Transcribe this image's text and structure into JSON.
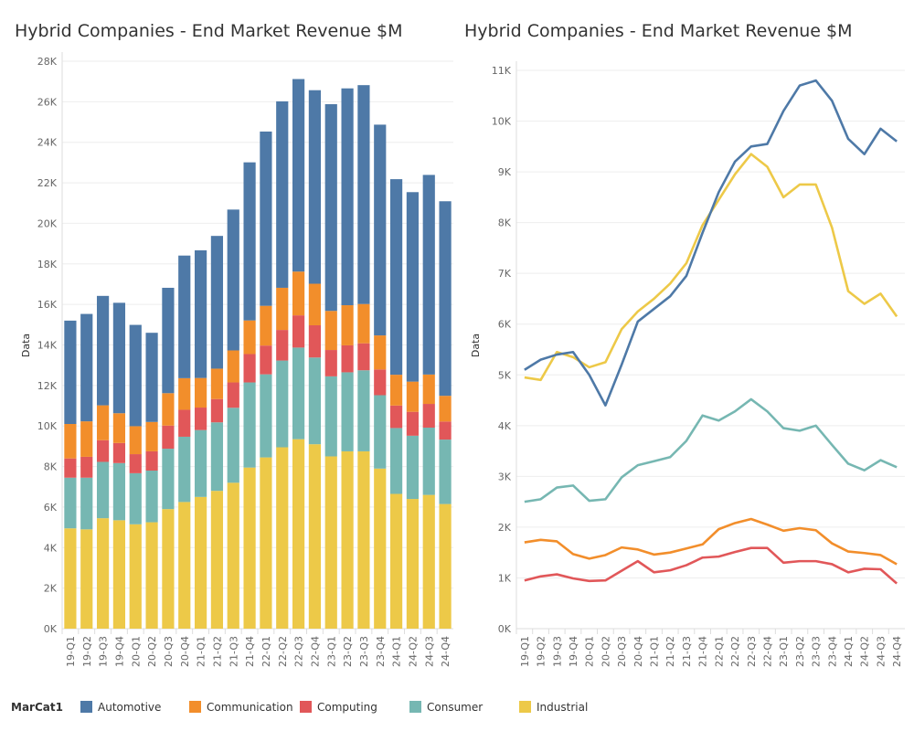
{
  "chart_data": [
    {
      "type": "bar",
      "stacked": true,
      "title": "Hybrid Companies - End Market Revenue $M",
      "xlabel": "",
      "ylabel": "Data",
      "ylim": [
        0,
        28000
      ],
      "yticks": [
        0,
        2000,
        4000,
        6000,
        8000,
        10000,
        12000,
        14000,
        16000,
        18000,
        20000,
        22000,
        24000,
        26000,
        28000
      ],
      "ytick_labels": [
        "0K",
        "2K",
        "4K",
        "6K",
        "8K",
        "10K",
        "12K",
        "14K",
        "16K",
        "18K",
        "20K",
        "22K",
        "24K",
        "26K",
        "28K"
      ],
      "grid": true,
      "series_ref": "shared"
    },
    {
      "type": "line",
      "title": "Hybrid Companies - End Market Revenue $M",
      "xlabel": "",
      "ylabel": "Data",
      "ylim": [
        0,
        11000
      ],
      "yticks": [
        0,
        1000,
        2000,
        3000,
        4000,
        5000,
        6000,
        7000,
        8000,
        9000,
        10000,
        11000
      ],
      "ytick_labels": [
        "0K",
        "1K",
        "2K",
        "3K",
        "4K",
        "5K",
        "6K",
        "7K",
        "8K",
        "9K",
        "10K",
        "11K"
      ],
      "grid": true,
      "series_ref": "shared"
    }
  ],
  "shared": {
    "categories": [
      "19-Q1",
      "19-Q2",
      "19-Q3",
      "19-Q4",
      "20-Q1",
      "20-Q2",
      "20-Q3",
      "20-Q4",
      "21-Q1",
      "21-Q2",
      "21-Q3",
      "21-Q4",
      "22-Q1",
      "22-Q2",
      "22-Q3",
      "22-Q4",
      "23-Q1",
      "23-Q2",
      "23-Q3",
      "23-Q4",
      "24-Q1",
      "24-Q2",
      "24-Q3",
      "24-Q4"
    ],
    "series": [
      {
        "name": "Industrial",
        "color": "#EDC948",
        "values": [
          4950,
          4900,
          5450,
          5350,
          5150,
          5250,
          5900,
          6250,
          6500,
          6800,
          7200,
          7950,
          8450,
          8950,
          9350,
          9100,
          8500,
          8750,
          8750,
          7900,
          6650,
          6400,
          6600,
          6150
        ]
      },
      {
        "name": "Consumer",
        "color": "#76B7B2",
        "values": [
          2500,
          2550,
          2780,
          2820,
          2520,
          2550,
          2980,
          3220,
          3300,
          3380,
          3700,
          4200,
          4100,
          4280,
          4520,
          4280,
          3950,
          3900,
          4000,
          3620,
          3250,
          3120,
          3320,
          3180
        ]
      },
      {
        "name": "Computing",
        "color": "#E15759",
        "values": [
          950,
          1030,
          1070,
          990,
          940,
          950,
          1140,
          1330,
          1110,
          1150,
          1250,
          1400,
          1420,
          1510,
          1590,
          1590,
          1300,
          1330,
          1330,
          1270,
          1110,
          1180,
          1170,
          890
        ]
      },
      {
        "name": "Communication",
        "color": "#F28E2B",
        "values": [
          1700,
          1750,
          1720,
          1470,
          1380,
          1450,
          1600,
          1560,
          1460,
          1500,
          1580,
          1660,
          1960,
          2080,
          2160,
          2050,
          1930,
          1980,
          1940,
          1680,
          1520,
          1490,
          1450,
          1270
        ]
      },
      {
        "name": "Automotive",
        "color": "#4E79A7",
        "values": [
          5100,
          5300,
          5400,
          5450,
          5000,
          4400,
          5200,
          6050,
          6300,
          6550,
          6950,
          7800,
          8600,
          9200,
          9500,
          9550,
          10200,
          10700,
          10800,
          10400,
          9650,
          9350,
          9850,
          9600
        ]
      }
    ]
  },
  "legend": {
    "title": "MarCat1",
    "placement": "bottom",
    "items": [
      {
        "label": "Automotive",
        "color": "#4E79A7"
      },
      {
        "label": "Communication",
        "color": "#F28E2B"
      },
      {
        "label": "Computing",
        "color": "#E15759"
      },
      {
        "label": "Consumer",
        "color": "#76B7B2"
      },
      {
        "label": "Industrial",
        "color": "#EDC948"
      }
    ]
  }
}
